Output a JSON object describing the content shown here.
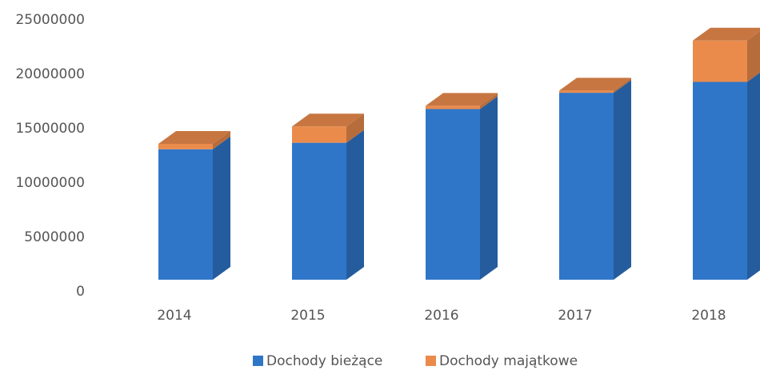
{
  "chart_data": {
    "type": "bar3d_stacked",
    "categories": [
      "2014",
      "2015",
      "2016",
      "2017",
      "2018"
    ],
    "series": [
      {
        "name": "Dochody bieżące",
        "color": "#2f76c9",
        "values": [
          12000000,
          12600000,
          15700000,
          17200000,
          18200000
        ]
      },
      {
        "name": "Dochody majątkowe",
        "color": "#ea8b4c",
        "values": [
          500000,
          1500000,
          300000,
          200000,
          3800000
        ]
      }
    ],
    "ylim": [
      0,
      25000000
    ],
    "yticks": [
      0,
      5000000,
      10000000,
      15000000,
      20000000,
      25000000
    ],
    "grid": false,
    "legend": "bottom"
  }
}
